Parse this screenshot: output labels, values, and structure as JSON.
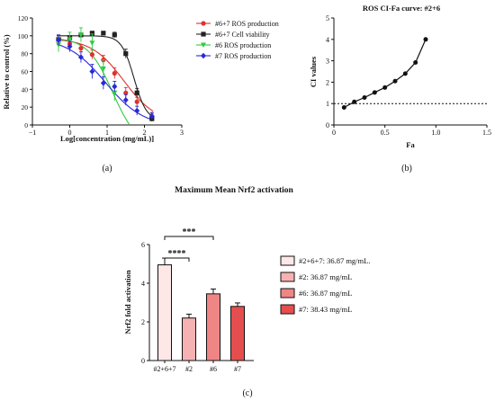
{
  "panel_labels": {
    "a": "(a)",
    "b": "(b)",
    "c": "(c)"
  },
  "colors": {
    "red": "#e03030",
    "black": "#222222",
    "green": "#2ecc40",
    "blue": "#2828d8",
    "bar1": "#fde7e7",
    "bar2": "#f6b2b2",
    "bar3": "#ef8585",
    "bar4": "#e54e4e"
  },
  "chart_data": [
    {
      "type": "line",
      "panel": "(a)",
      "title": "",
      "xlabel": "Log[concentration (mg/mL)]",
      "ylabel": "Relative to control (%)",
      "xlim": [
        -1,
        3
      ],
      "ylim": [
        0,
        120
      ],
      "xticks": [
        "−1",
        "0",
        "1",
        "2",
        "3"
      ],
      "yticks": [
        "0",
        "20",
        "40",
        "60",
        "80",
        "100",
        "120"
      ],
      "legend_position": "right",
      "series": [
        {
          "name": "#6+7 ROS production",
          "color": "#e03030",
          "marker": "circle",
          "x": [
            -0.3,
            0.0,
            0.3,
            0.6,
            0.9,
            1.2,
            1.5,
            1.8,
            2.2
          ],
          "y": [
            96,
            91,
            86,
            79,
            73,
            58,
            36,
            26,
            9
          ],
          "err": [
            5,
            5,
            4,
            5,
            5,
            6,
            6,
            5,
            4
          ],
          "curve": {
            "top": 97,
            "bottom": 2,
            "logec50": 1.45,
            "hill": 1.0
          }
        },
        {
          "name": "#6+7 Cell viability",
          "color": "#222222",
          "marker": "square",
          "x": [
            -0.3,
            0.0,
            0.3,
            0.6,
            0.9,
            1.2,
            1.5,
            1.8,
            2.2
          ],
          "y": [
            96,
            98,
            101,
            103,
            103,
            101,
            80,
            36,
            7
          ],
          "err": [
            2,
            2,
            2,
            2,
            2,
            3,
            5,
            5,
            3
          ],
          "curve": {
            "top": 100,
            "bottom": 5,
            "logec50": 1.72,
            "hill": 2.6
          }
        },
        {
          "name": "#6 ROS production",
          "color": "#2ecc40",
          "marker": "triangle-down",
          "x": [
            -0.3,
            0.0,
            0.3,
            0.6,
            0.9,
            1.2
          ],
          "y": [
            90,
            96,
            101,
            92,
            63,
            36
          ],
          "err": [
            8,
            8,
            8,
            10,
            10,
            9
          ],
          "curve": {
            "top": 98,
            "bottom": -25,
            "logec50": 1.15,
            "hill": 1.3
          }
        },
        {
          "name": "#7 ROS production",
          "color": "#2828d8",
          "marker": "diamond",
          "x": [
            -0.3,
            0.0,
            0.3,
            0.6,
            0.9,
            1.2,
            1.5,
            1.8,
            2.2
          ],
          "y": [
            95,
            88,
            76,
            60,
            47,
            43,
            28,
            16,
            10
          ],
          "err": [
            6,
            6,
            6,
            8,
            7,
            6,
            6,
            5,
            4
          ],
          "curve": {
            "top": 98,
            "bottom": -2,
            "logec50": 0.95,
            "hill": 0.85
          }
        }
      ]
    },
    {
      "type": "line",
      "panel": "(b)",
      "title": "ROS CI-Fa curve: #2+6",
      "xlabel": "Fa",
      "ylabel": "CI values",
      "xlim": [
        0,
        1.5
      ],
      "ylim": [
        0,
        5
      ],
      "xticks": [
        "0",
        "0.5",
        "1.0",
        "1.5"
      ],
      "yticks": [
        "0",
        "1",
        "2",
        "3",
        "4",
        "5"
      ],
      "reference_line": 1,
      "series": [
        {
          "name": "",
          "color": "#111111",
          "x": [
            0.1,
            0.2,
            0.3,
            0.4,
            0.5,
            0.6,
            0.7,
            0.8,
            0.9
          ],
          "y": [
            0.82,
            1.08,
            1.28,
            1.52,
            1.75,
            2.05,
            2.4,
            2.92,
            4.0
          ]
        }
      ]
    },
    {
      "type": "bar",
      "panel": "(c)",
      "title": "Maximum Mean Nrf2 activation",
      "xlabel": "",
      "ylabel": "Nrf2 fold activation",
      "ylim": [
        0,
        6
      ],
      "yticks": [
        "0",
        "2",
        "4",
        "6"
      ],
      "categories": [
        "#2+6+7",
        "#2",
        "#6",
        "#7"
      ],
      "values": [
        4.95,
        2.2,
        3.45,
        2.8
      ],
      "err": [
        0.35,
        0.2,
        0.25,
        0.18
      ],
      "legend_position": "right",
      "legend": [
        "#2+6+7: 36.87 mg/mL.",
        "#2: 36.87 mg/mL",
        "#6: 36.87 mg/mL",
        "#7: 38.43 mg/mL"
      ],
      "significance": [
        {
          "from": 0,
          "to": 1,
          "label": "****"
        },
        {
          "from": 0,
          "to": 2,
          "label": "***"
        }
      ]
    }
  ]
}
